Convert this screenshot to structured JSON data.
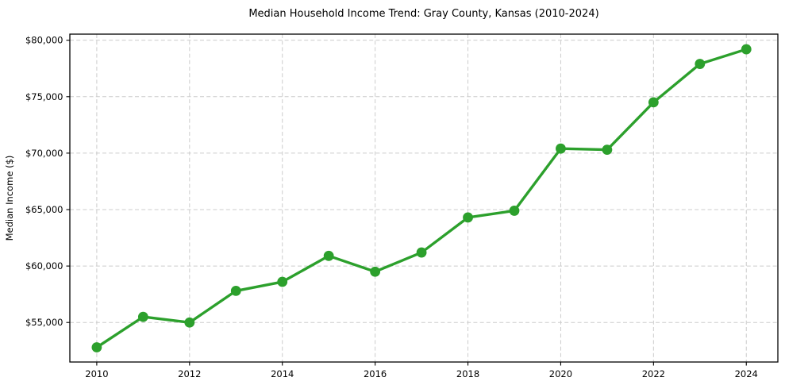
{
  "chart_data": {
    "type": "line",
    "title": "Median Household Income Trend: Gray County, Kansas (2010-2024)",
    "xlabel": "",
    "ylabel": "Median Income ($)",
    "x": [
      2010,
      2011,
      2012,
      2013,
      2014,
      2015,
      2016,
      2017,
      2018,
      2019,
      2020,
      2021,
      2022,
      2023,
      2024
    ],
    "values": [
      52800,
      55500,
      55000,
      57800,
      58600,
      60900,
      59500,
      61200,
      64300,
      64900,
      70400,
      70300,
      74500,
      77900,
      79200
    ],
    "xticks": [
      2010,
      2012,
      2014,
      2016,
      2018,
      2020,
      2022,
      2024
    ],
    "xtick_labels": [
      "2010",
      "2012",
      "2014",
      "2016",
      "2018",
      "2020",
      "2022",
      "2024"
    ],
    "yticks": [
      55000,
      60000,
      65000,
      70000,
      75000,
      80000
    ],
    "ytick_labels": [
      "$55,000",
      "$60,000",
      "$65,000",
      "$70,000",
      "$75,000",
      "$80,000"
    ],
    "xlim": [
      2009.42,
      2024.68
    ],
    "ylim": [
      51500,
      80540
    ],
    "grid": true,
    "grid_style": "dashed",
    "legend": false,
    "line_color": "#2ca02c",
    "marker": "circle",
    "grid_color": "#cccccc",
    "axis_color": "#000000",
    "background_color": "#ffffff"
  }
}
